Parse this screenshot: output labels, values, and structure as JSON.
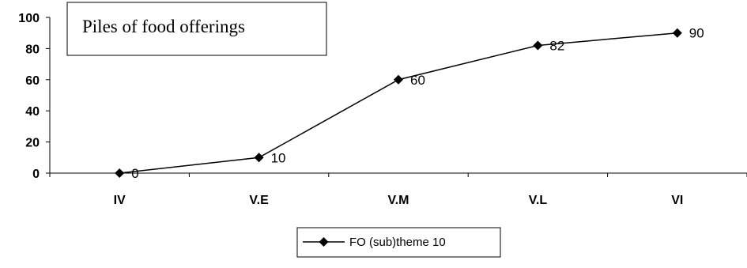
{
  "chart_data": {
    "type": "line",
    "title": "Piles of food offerings",
    "categories": [
      "IV",
      "V.E",
      "V.M",
      "V.L",
      "VI"
    ],
    "series": [
      {
        "name": "FO (sub)theme 10",
        "values": [
          0,
          10,
          60,
          82,
          90
        ],
        "color": "#000000",
        "marker": "diamond"
      }
    ],
    "data_labels": [
      "0",
      "10",
      "60",
      "82",
      "90"
    ],
    "ylim": [
      0,
      100
    ],
    "yticks": [
      0,
      20,
      40,
      60,
      80,
      100
    ],
    "ytick_labels": [
      "0",
      "20",
      "40",
      "60",
      "80",
      "100"
    ],
    "xlabel": "",
    "ylabel": "",
    "grid": false,
    "legend_position": "bottom"
  }
}
